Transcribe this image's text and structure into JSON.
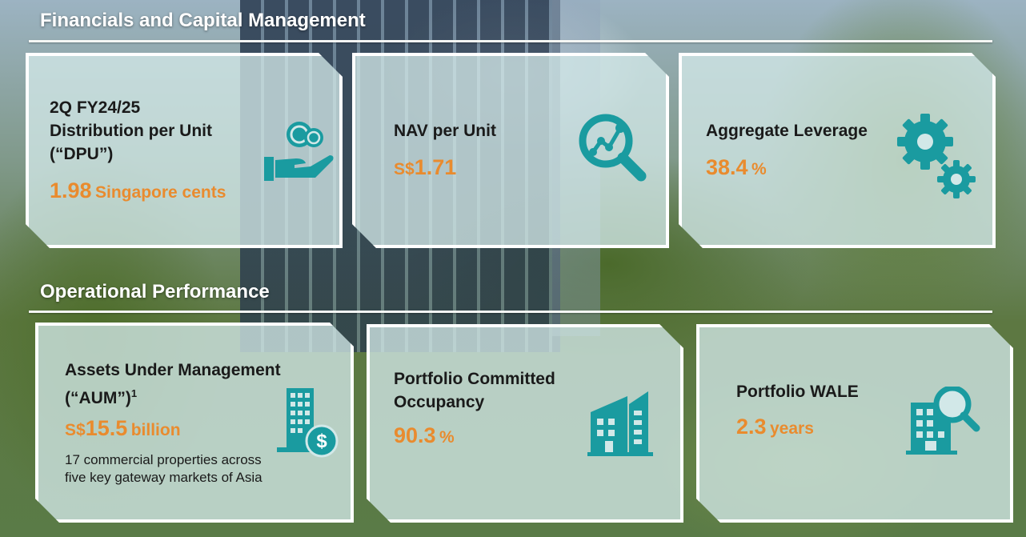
{
  "sections": {
    "financials_title": "Financials and Capital Management",
    "operational_title": "Operational Performance"
  },
  "accent_colors": {
    "teal": "#1a9ba0",
    "orange": "#e98b2e"
  },
  "financials": {
    "dpu": {
      "label_line1": "2Q FY24/25",
      "label_line2": "Distribution per Unit",
      "label_line3": "(“DPU”)",
      "value": "1.98",
      "unit": "Singapore cents",
      "icon": "hand-coins-icon"
    },
    "nav": {
      "label": "NAV per Unit",
      "prefix": "S$",
      "value": "1.71",
      "icon": "magnifier-chart-icon"
    },
    "leverage": {
      "label": "Aggregate Leverage",
      "value": "38.4",
      "unit": "%",
      "icon": "gears-icon"
    }
  },
  "operational": {
    "aum": {
      "label_line1": "Assets Under Management",
      "label_line2": "(“AUM”)",
      "footnote": "1",
      "prefix": "S$",
      "value": "15.5",
      "unit": "billion",
      "note_line1": "17 commercial properties across",
      "note_line2": "five key gateway markets of Asia",
      "icon": "building-dollar-icon"
    },
    "occupancy": {
      "label_line1": "Portfolio Committed",
      "label_line2": "Occupancy",
      "value": "90.3",
      "unit": "%",
      "icon": "office-buildings-icon"
    },
    "wale": {
      "label": "Portfolio WALE",
      "value": "2.3",
      "unit": "years",
      "icon": "building-search-icon"
    }
  }
}
